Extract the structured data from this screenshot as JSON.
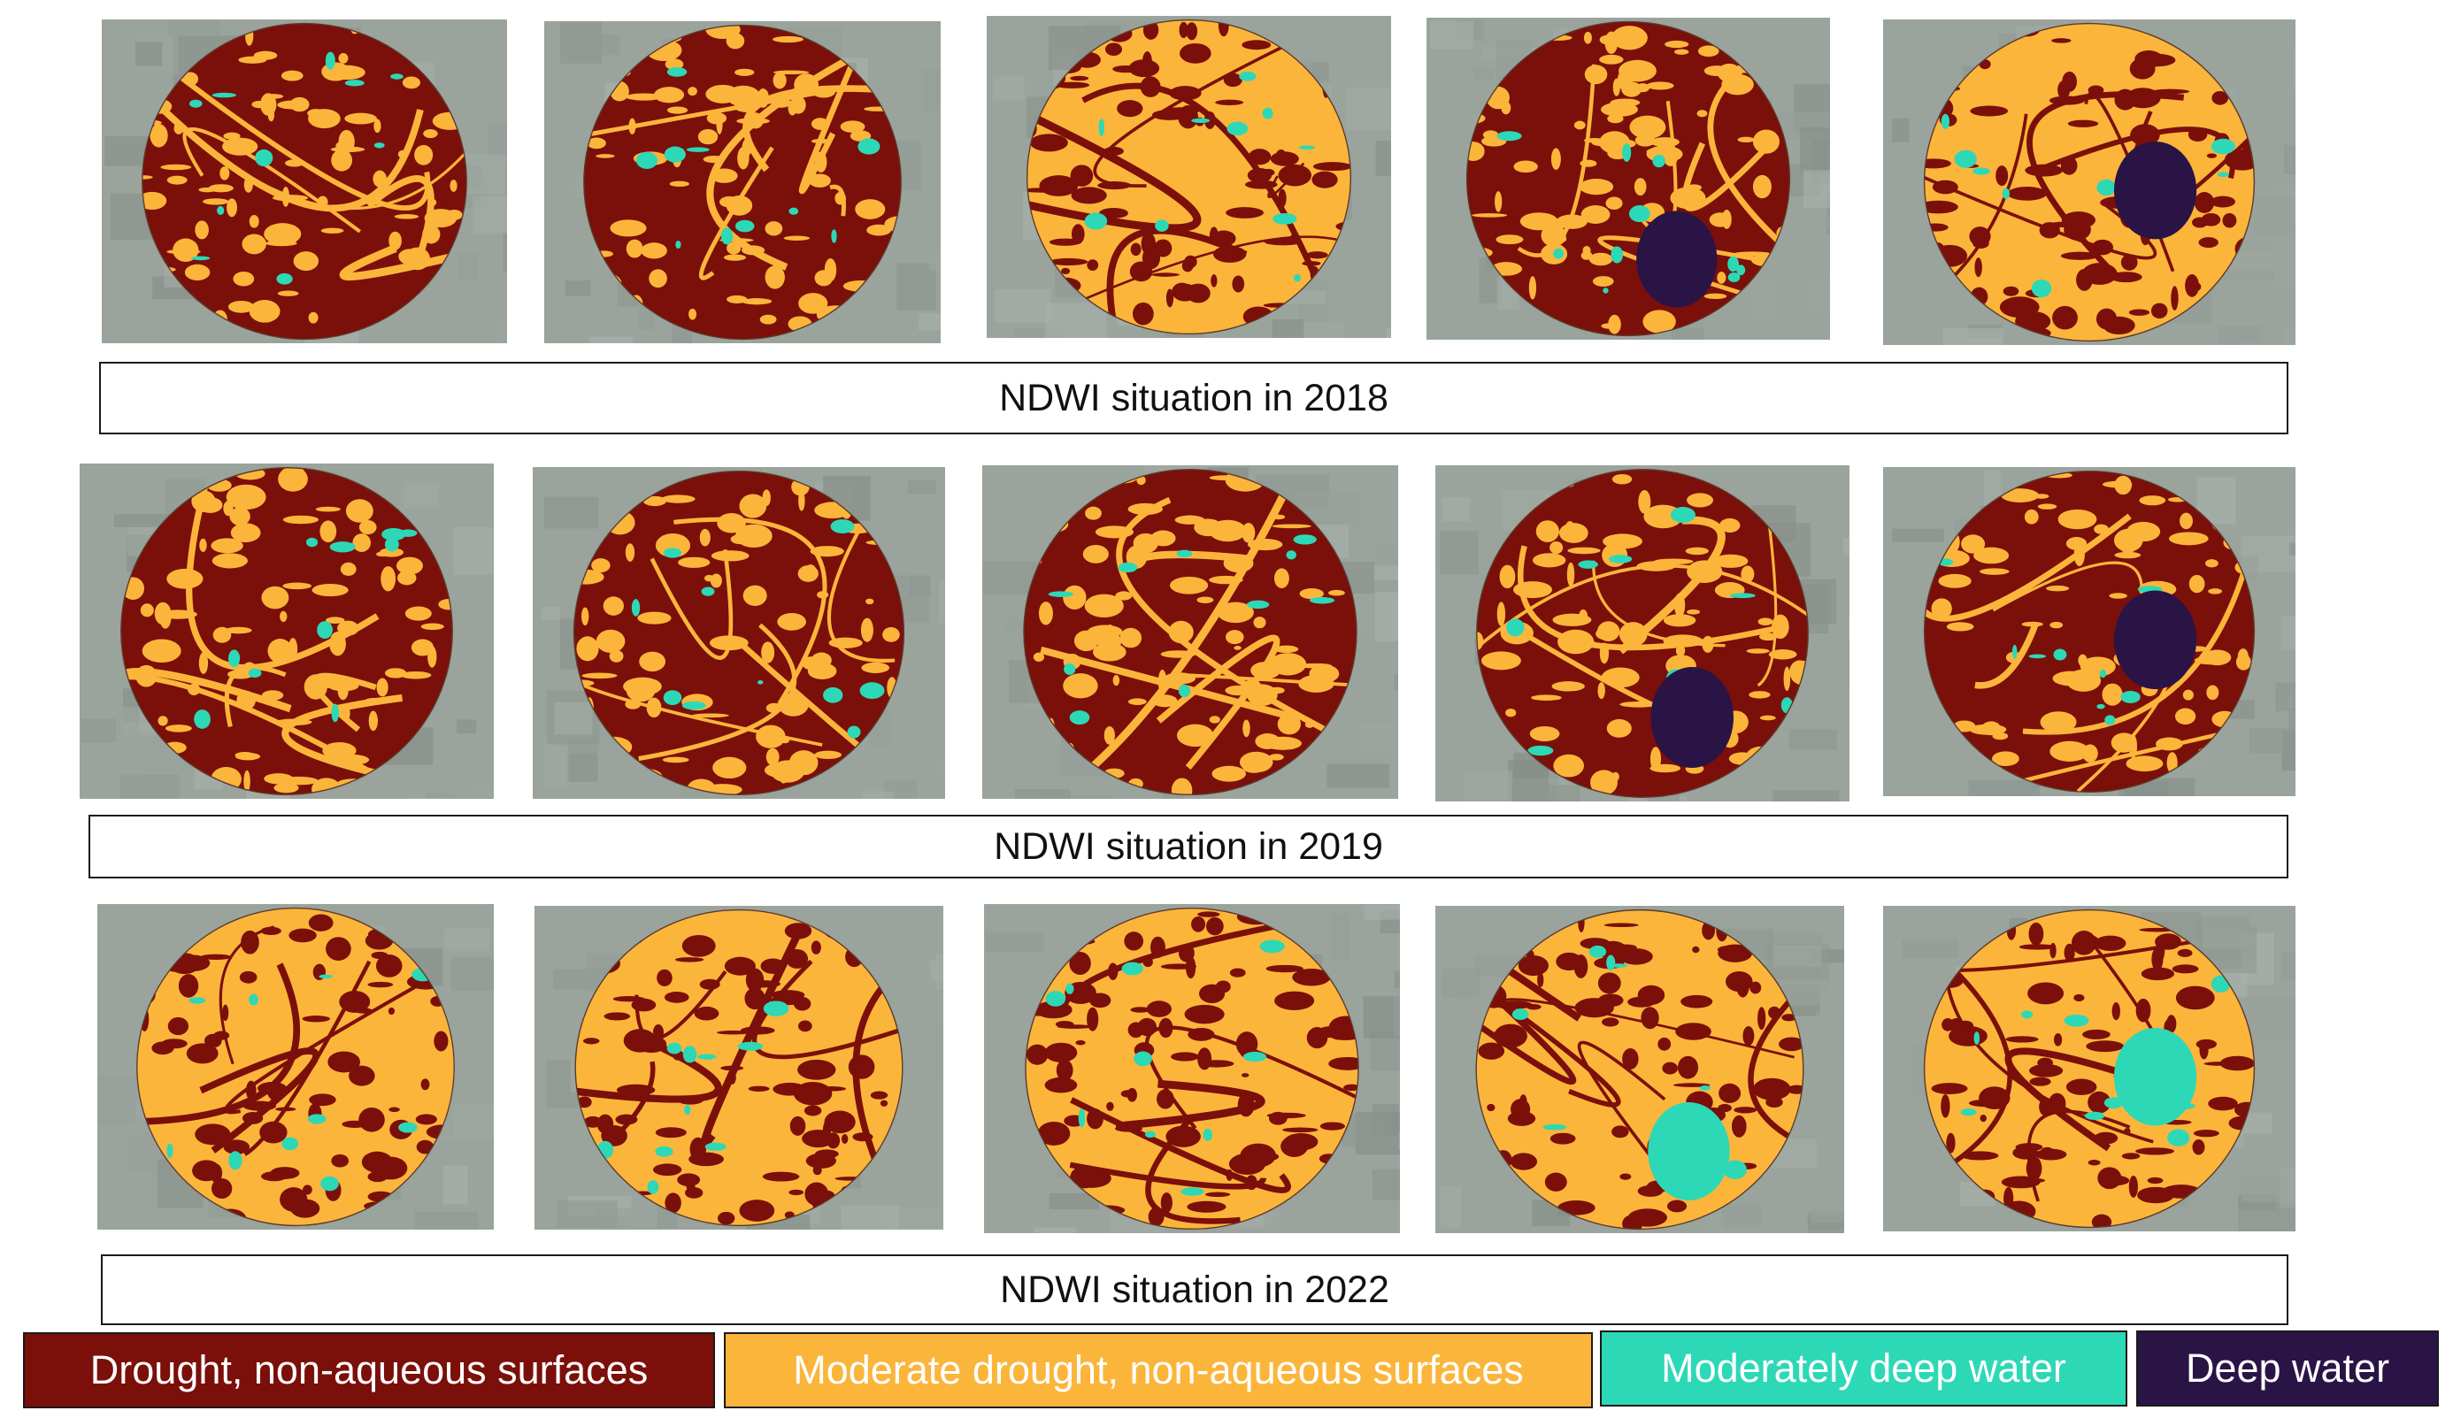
{
  "captions": {
    "row1": "NDWI situation in 2018",
    "row2": "NDWI situation in 2019",
    "row3": "NDWI situation in 2022"
  },
  "legend": [
    {
      "label": "Drought, non-aqueous surfaces",
      "color": "#7b0f0a"
    },
    {
      "label": "Moderate drought, non-aqueous surfaces",
      "color": "#fbb53b"
    },
    {
      "label": "Moderately deep water",
      "color": "#2dd8b6"
    },
    {
      "label": "Deep water",
      "color": "#2a1446"
    }
  ],
  "rows": [
    {
      "year": "2018",
      "maps": [
        {
          "base": "#7b0f0a",
          "patch": "#fbb53b",
          "water": "#2dd8b6",
          "deep": "#2a1446"
        },
        {
          "base": "#7b0f0a",
          "patch": "#fbb53b",
          "water": "#2dd8b6",
          "deep": "#2a1446"
        },
        {
          "base": "#fbb53b",
          "patch": "#7b0f0a",
          "water": "#2dd8b6",
          "deep": "#2a1446"
        },
        {
          "base": "#7b0f0a",
          "patch": "#fbb53b",
          "water": "#2dd8b6",
          "deep": "#2a1446"
        },
        {
          "base": "#fbb53b",
          "patch": "#7b0f0a",
          "water": "#2dd8b6",
          "deep": "#2a1446"
        }
      ]
    },
    {
      "year": "2019",
      "maps": [
        {
          "base": "#7b0f0a",
          "patch": "#fbb53b",
          "water": "#2dd8b6",
          "deep": "#2a1446"
        },
        {
          "base": "#7b0f0a",
          "patch": "#fbb53b",
          "water": "#2dd8b6",
          "deep": "#2a1446"
        },
        {
          "base": "#7b0f0a",
          "patch": "#fbb53b",
          "water": "#2dd8b6",
          "deep": "#2a1446"
        },
        {
          "base": "#7b0f0a",
          "patch": "#fbb53b",
          "water": "#2dd8b6",
          "deep": "#2a1446"
        },
        {
          "base": "#7b0f0a",
          "patch": "#fbb53b",
          "water": "#2dd8b6",
          "deep": "#2a1446"
        }
      ]
    },
    {
      "year": "2022",
      "maps": [
        {
          "base": "#fbb53b",
          "patch": "#7b0f0a",
          "water": "#2dd8b6",
          "deep": "#2a1446"
        },
        {
          "base": "#fbb53b",
          "patch": "#7b0f0a",
          "water": "#2dd8b6",
          "deep": "#2a1446"
        },
        {
          "base": "#fbb53b",
          "patch": "#7b0f0a",
          "water": "#2dd8b6",
          "deep": "#2a1446"
        },
        {
          "base": "#fbb53b",
          "patch": "#7b0f0a",
          "water": "#2dd8b6",
          "deep": "#2a1446"
        },
        {
          "base": "#fbb53b",
          "patch": "#7b0f0a",
          "water": "#2dd8b6",
          "deep": "#2a1446"
        }
      ]
    }
  ]
}
